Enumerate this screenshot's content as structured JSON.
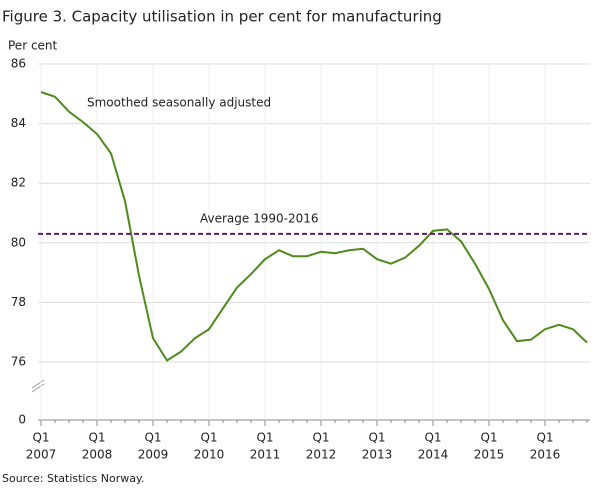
{
  "chart_data": {
    "type": "line",
    "title": "Figure 3. Capacity utilisation in per cent for manufacturing",
    "y_label": "Per cent",
    "source": "Source: Statistics Norway.",
    "categories": [
      [
        "Q1",
        "2007"
      ],
      null,
      null,
      null,
      [
        "Q1",
        "2008"
      ],
      null,
      null,
      null,
      [
        "Q1",
        "2009"
      ],
      null,
      null,
      null,
      [
        "Q1",
        "2010"
      ],
      null,
      null,
      null,
      [
        "Q1",
        "2011"
      ],
      null,
      null,
      null,
      [
        "Q1",
        "2012"
      ],
      null,
      null,
      null,
      [
        "Q1",
        "2013"
      ],
      null,
      null,
      null,
      [
        "Q1",
        "2014"
      ],
      null,
      null,
      null,
      [
        "Q1",
        "2015"
      ],
      null,
      null,
      null,
      [
        "Q1",
        "2016"
      ],
      null,
      null,
      null
    ],
    "series": [
      {
        "name": "Smoothed seasonally adjusted",
        "color": "#4e8a1c",
        "values": [
          85.06,
          84.9,
          84.4,
          84.05,
          83.65,
          83.0,
          81.4,
          78.9,
          76.8,
          76.05,
          76.35,
          76.8,
          77.1,
          77.8,
          78.5,
          78.95,
          79.45,
          79.75,
          79.55,
          79.55,
          79.7,
          79.65,
          79.75,
          79.8,
          79.45,
          79.3,
          79.5,
          79.9,
          80.4,
          80.45,
          80.05,
          79.3,
          78.45,
          77.4,
          76.7,
          76.75,
          77.1,
          77.25,
          77.1,
          76.65
        ]
      }
    ],
    "reference_line": {
      "label": "Average 1990-2016",
      "value": 80.3,
      "color": "#5b1f6e"
    },
    "ylim": [
      0,
      86
    ],
    "axis_break": [
      0,
      76
    ],
    "yticks": [
      0,
      76,
      78,
      80,
      82,
      84,
      86
    ],
    "grid": true
  }
}
